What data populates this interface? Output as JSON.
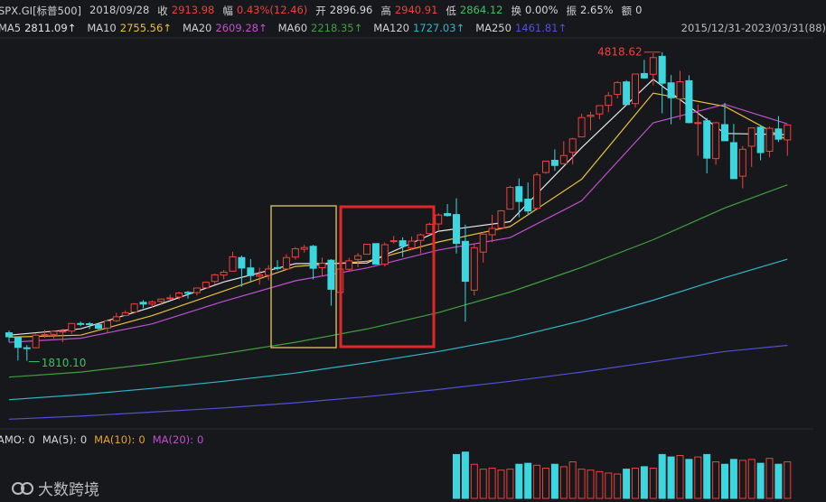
{
  "header": {
    "symbol": "SPX.GI[标普500]",
    "date": "2018/09/28",
    "fields": [
      {
        "label": "收",
        "value": "2913.98",
        "color": "#f0403c"
      },
      {
        "label": "幅",
        "value": "0.43%(12.46)",
        "color": "#f0403c"
      },
      {
        "label": "开",
        "value": "2896.96",
        "color": "#d8d8d8"
      },
      {
        "label": "高",
        "value": "2940.91",
        "color": "#f0403c"
      },
      {
        "label": "低",
        "value": "2864.12",
        "color": "#3fc060"
      },
      {
        "label": "换",
        "value": "0.00%",
        "color": "#d8d8d8"
      },
      {
        "label": "振",
        "value": "2.65%",
        "color": "#d8d8d8"
      },
      {
        "label": "额",
        "value": "0",
        "color": "#d8d8d8"
      }
    ],
    "range": "2015/12/31-2023/03/31(88)"
  },
  "indicator": [
    {
      "label": "AMO:",
      "value": 0,
      "color": "#d8d8d8"
    },
    {
      "label": "MA(5):",
      "value": 0,
      "color": "#d8d8d8"
    },
    {
      "label": "MA(10):",
      "value": 0,
      "color": "#e8a030"
    },
    {
      "label": "MA(20):",
      "value": 0,
      "color": "#c050d0"
    }
  ],
  "watermark": "大数跨境",
  "chart_data": {
    "type": "candlestick",
    "ylim": [
      1190,
      4940
    ],
    "up_color": "#f0403c",
    "down_color": "#3cd6de",
    "open": [
      2082.93,
      2038.2,
      1936.94,
      1937.09,
      2056.62,
      2067.17,
      2093.94,
      2099.34,
      2173.15,
      2171.33,
      2164.33,
      2128.68,
      2200.17,
      2251.57,
      2285.59,
      2380.13,
      2362.34,
      2388.5,
      2415.65,
      2431.39,
      2477.1,
      2474.42,
      2521.2,
      2583.21,
      2645.1,
      2683.73,
      2816.45,
      2715.22,
      2633.45,
      2642.96,
      2718.7,
      2704.95,
      2821.17,
      2896.96,
      2926.29,
      2717.58,
      2790.5,
      2476.96,
      2702.32,
      2798.22,
      2848.63,
      2952.33,
      2751.53,
      2971.41,
      2980.32,
      2909.01,
      2983.69,
      3050.72,
      3143.85,
      3244.67,
      3235.66,
      2974.28,
      2498.08,
      2869.09,
      3038.78,
      3105.92,
      3288.26,
      3507.44,
      3385.87,
      3296.2,
      3645.87,
      3764.61,
      3731.17,
      3842.51,
      3992.78,
      4191.98,
      4216.52,
      4300.73,
      4406.86,
      4528.8,
      4317.16,
      4610.62,
      4602.82,
      4778.14,
      4519.57,
      4363.14,
      4540.32,
      4130.61,
      4149.78,
      3781,
      4112.38,
      3936.73,
      3609.78,
      3901.79,
      4087.14,
      3853.29,
      4070.07,
      3963.34
    ],
    "high": [
      2104.27,
      2038.2,
      1962.96,
      2072.21,
      2111.05,
      2103.48,
      2120.55,
      2177.09,
      2193.81,
      2187.87,
      2169.6,
      2214.1,
      2277.53,
      2300.99,
      2371.54,
      2400.98,
      2398.16,
      2418.71,
      2453.82,
      2484.04,
      2490.87,
      2519.44,
      2582.98,
      2657.74,
      2694.97,
      2872.87,
      2835.96,
      2801.9,
      2717.49,
      2742.24,
      2791.47,
      2848.03,
      2916.5,
      2940.91,
      2939.86,
      2815.15,
      2800.18,
      2708.95,
      2813.49,
      2860.31,
      2949.52,
      2954.13,
      2964.15,
      3027.98,
      3013.59,
      3021.99,
      3050.1,
      3154.26,
      3247.93,
      3337.77,
      3393.52,
      3136.72,
      2954.86,
      3068.67,
      3233.13,
      3279.99,
      3514.77,
      3588.11,
      3549.85,
      3645.99,
      3760.2,
      3870.9,
      3950.43,
      3983.87,
      4218.78,
      4238.04,
      4302.43,
      4429.97,
      4537.36,
      4545.85,
      4608.08,
      4743.83,
      4808.93,
      4818.62,
      4595.31,
      4637.3,
      4593.45,
      4307.66,
      4177.51,
      4140.15,
      4325.28,
      4119.28,
      3905.42,
      4080.11,
      4100.96,
      4094.21,
      4195.44,
      4110.75
    ],
    "low": [
      1993.26,
      1812.29,
      1810.1,
      1931.81,
      2033.8,
      2025.91,
      1991.68,
      2074.02,
      2147.58,
      2119.12,
      2114.72,
      2083.79,
      2187.44,
      2245.13,
      2271.65,
      2322.25,
      2328.95,
      2352.72,
      2405.7,
      2407.7,
      2417.35,
      2446.55,
      2520.4,
      2557.45,
      2605.52,
      2682.36,
      2532.69,
      2585.89,
      2553.8,
      2594.62,
      2691.99,
      2698.95,
      2796.34,
      2864.12,
      2603.54,
      2631.09,
      2346.58,
      2443.96,
      2681.83,
      2722.27,
      2848.63,
      2750.52,
      2728.81,
      2952.22,
      2822.12,
      2891.85,
      2855.94,
      3050.72,
      3070.33,
      3214.64,
      2855.84,
      2191.86,
      2447.49,
      2766.64,
      2965.66,
      3101.17,
      3284.53,
      3209.45,
      3233.94,
      3279.74,
      3633.4,
      3662.71,
      3725.62,
      3723.34,
      3992.78,
      4056.88,
      4164.4,
      4233.13,
      4367.73,
      4305.91,
      4278.94,
      4560,
      4495.12,
      4222.62,
      4114.65,
      4157.87,
      4124.28,
      3810.32,
      3636.87,
      3721.56,
      3954.53,
      3584.13,
      3491.58,
      3698.15,
      3764.49,
      3794.33,
      3943.08,
      3808.86
    ],
    "close": [
      2043.94,
      1940.24,
      1932.23,
      2059.74,
      2065.3,
      2096.95,
      2098.86,
      2173.6,
      2170.95,
      2168.27,
      2126.15,
      2198.81,
      2238.83,
      2278.87,
      2363.64,
      2362.72,
      2384.2,
      2411.8,
      2423.41,
      2470.3,
      2471.65,
      2519.36,
      2575.26,
      2647.58,
      2673.61,
      2823.81,
      2713.83,
      2640.87,
      2648.05,
      2705.27,
      2718.37,
      2816.29,
      2901.52,
      2913.98,
      2711.74,
      2760.17,
      2506.85,
      2704.1,
      2784.49,
      2834.4,
      2945.83,
      2752.06,
      2941.76,
      2980.38,
      2926.46,
      2976.74,
      3037.56,
      3140.98,
      3230.78,
      3225.52,
      2954.22,
      2584.59,
      2912.43,
      3044.31,
      3100.29,
      3271.12,
      3500.31,
      3363,
      3269.96,
      3621.63,
      3756.07,
      3714.24,
      3811.15,
      3972.89,
      4181.17,
      4204.11,
      4297.5,
      4395.26,
      4522.68,
      4307.54,
      4605.38,
      4567,
      4766.18,
      4515.55,
      4373.94,
      4530.41,
      4131.93,
      4132.15,
      3785.38,
      4130.29,
      3955,
      3585.62,
      3871.98,
      4080.11,
      3839.5,
      4076.6,
      3970.15,
      4109.31
    ],
    "extremes": [
      {
        "value": 4818.62,
        "label": "4818.62",
        "color": "#f0403c"
      },
      {
        "value": 1810.1,
        "label": "1810.10",
        "color": "#3fc060"
      }
    ],
    "ma_x": [
      0,
      8,
      16,
      24,
      32,
      40,
      48,
      56,
      64,
      72,
      80,
      87
    ],
    "series": [
      {
        "name": "MA5",
        "color": "#e6e6e6",
        "label": "2811.09↑",
        "values": [
          2060,
          2121,
          2334,
          2578,
          2757,
          2763,
          3073,
          3166,
          3887,
          4554,
          4026,
          4015
        ]
      },
      {
        "name": "MA10",
        "color": "#e8c040",
        "label": "2755.56↑",
        "values": [
          2040,
          2060,
          2250,
          2490,
          2730,
          2780,
          2968,
          3118,
          3580,
          4420,
          4290,
          3961
        ]
      },
      {
        "name": "MA20",
        "color": "#c050d0",
        "label": "2609.28↑",
        "values": [
          1990,
          2030,
          2170,
          2390,
          2590,
          2715,
          2890,
          3010,
          3370,
          4130,
          4310,
          4120
        ]
      },
      {
        "name": "MA60",
        "color": "#3fa040",
        "label": "2218.35↑",
        "values": [
          1650,
          1700,
          1780,
          1880,
          1990,
          2120,
          2280,
          2480,
          2720,
          2990,
          3300,
          3525
        ]
      },
      {
        "name": "MA120",
        "color": "#2fb8c8",
        "label": "1727.03↑",
        "values": [
          1430,
          1480,
          1540,
          1610,
          1690,
          1790,
          1900,
          2030,
          2200,
          2400,
          2620,
          2800
        ]
      },
      {
        "name": "MA250",
        "color": "#5050d8",
        "label": "1461.81↑",
        "values": [
          1240,
          1270,
          1310,
          1350,
          1400,
          1460,
          1530,
          1610,
          1700,
          1800,
          1900,
          1960
        ]
      }
    ],
    "volume_ylim": [
      0,
      100
    ],
    "volume": [
      null,
      null,
      null,
      null,
      null,
      null,
      null,
      null,
      null,
      null,
      null,
      null,
      null,
      null,
      null,
      null,
      null,
      null,
      null,
      null,
      null,
      null,
      null,
      null,
      null,
      null,
      null,
      null,
      null,
      null,
      null,
      null,
      null,
      null,
      null,
      null,
      null,
      null,
      null,
      null,
      null,
      null,
      null,
      null,
      null,
      null,
      null,
      null,
      null,
      null,
      90,
      95,
      70,
      60,
      62,
      58,
      60,
      70,
      72,
      68,
      62,
      70,
      65,
      75,
      60,
      58,
      55,
      52,
      50,
      60,
      62,
      65,
      62,
      90,
      85,
      88,
      80,
      85,
      90,
      75,
      70,
      80,
      78,
      80,
      72,
      82,
      70,
      75
    ]
  }
}
